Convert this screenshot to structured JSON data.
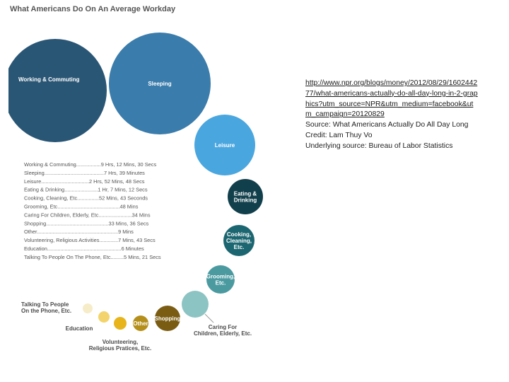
{
  "chart_data": {
    "type": "bubble",
    "title": "What Americans Do On An Average Workday",
    "units": "hours per workday",
    "categories": [
      {
        "label": "Working & Commuting",
        "value_text": "9 Hrs, 12 Mins, 30 Secs",
        "hours": 9.208,
        "color": "#2a5675",
        "text_color": "#ffffff"
      },
      {
        "label": "Sleeping",
        "value_text": "7 Hrs, 39 Minutes",
        "hours": 7.65,
        "color": "#3a7cab",
        "text_color": "#ffffff"
      },
      {
        "label": "Leisure",
        "value_text": "2 Hrs, 52 Mins, 48 Secs",
        "hours": 2.88,
        "color": "#4aa6df",
        "text_color": "#ffffff"
      },
      {
        "label": "Eating & Drinking",
        "value_text": "1 Hr, 7 Mins, 12 Secs",
        "hours": 1.12,
        "color": "#123f4c",
        "text_color": "#ffffff"
      },
      {
        "label": "Cooking, Cleaning, Etc.",
        "value_text": "52 Mins, 43 Seconds",
        "hours": 0.879,
        "color": "#1b6670",
        "text_color": "#ffffff"
      },
      {
        "label": "Grooming, Etc.",
        "value_text": "48 Mins",
        "hours": 0.8,
        "color": "#4a9aa0",
        "text_color": "#ffffff"
      },
      {
        "label": "Caring For Children, Elderly, Etc.",
        "value_text": "34 Mins",
        "hours": 0.567,
        "color": "#8cc4c3",
        "text_color": "#4a4a4a"
      },
      {
        "label": "Shopping",
        "value_text": "33 Mins, 36 Secs",
        "hours": 0.56,
        "color": "#7a5c13",
        "text_color": "#ffffff"
      },
      {
        "label": "Other",
        "value_text": "9 Mins",
        "hours": 0.15,
        "color": "#b48f1b",
        "text_color": "#ffffff"
      },
      {
        "label": "Volunteering, Religious Practices, Etc.",
        "value_text": "7 Mins, 43 Secs",
        "hours": 0.129,
        "color": "#e8b41c",
        "text_color": "#4a4a4a"
      },
      {
        "label": "Education",
        "value_text": "6 Minutes",
        "hours": 0.1,
        "color": "#f3d46c",
        "text_color": "#4a4a4a"
      },
      {
        "label": "Talking To People On The Phone, Etc.",
        "value_text": "5 Mins, 21 Secs",
        "hours": 0.089,
        "color": "#f6ecc8",
        "text_color": "#4a4a4a"
      }
    ],
    "bubble_labels": {
      "working": [
        "Working & Commuting"
      ],
      "sleeping": [
        "Sleeping"
      ],
      "leisure": [
        "Leisure"
      ],
      "eating": [
        "Eating &",
        "Drinking"
      ],
      "cooking": [
        "Cooking,",
        "Cleaning,",
        "Etc."
      ],
      "grooming": [
        "Grooming,",
        "Etc."
      ],
      "shopping": [
        "Shopping"
      ],
      "other": [
        "Other"
      ]
    },
    "side_labels": {
      "caring": [
        "Caring For",
        "Children, Elderly, Etc."
      ],
      "volunteering": [
        "Volunteering,",
        "Religious Pratices, Etc."
      ],
      "education": [
        "Education"
      ],
      "talking": [
        "Talking To People",
        "On the Phone, Etc."
      ]
    },
    "legend_lines": [
      "Working & Commuting.................9 Hrs, 12 Mins, 30 Secs",
      "Sleeping.........................................7 Hrs, 39 Minutes",
      "Leisure.................................2 Hrs, 52 Mins, 48 Secs",
      "Eating & Drinking.......................1 Hr, 7 Mins, 12 Secs",
      "Cooking, Cleaning, Etc...............52 Mins, 43 Seconds",
      "Grooming, Etc...........................................48 Mins",
      "Caring For Children, Elderly, Etc.......................34 Mins",
      "Shopping...........................................33 Mins, 36 Secs",
      "Other........................................................9 Mins",
      "Volunteering, Religious Activities.............7 Mins, 43 Secs",
      "Education...................................................6 Minutes",
      "Talking To People On The Phone, Etc.........5 Mins, 21 Secs"
    ]
  },
  "notes": {
    "url": "http://www.npr.org/blogs/money/2012/08/29/160244277/what-americans-actually-do-all-day-long-in-2-graphics?utm_source=NPR&utm_medium=facebook&utm_campaign=20120829",
    "source": "Source: What Americans Actually Do All Day Long Credit: Lam Thuy Vo",
    "underlying": "Underlying source: Bureau of Labor Statistics"
  }
}
